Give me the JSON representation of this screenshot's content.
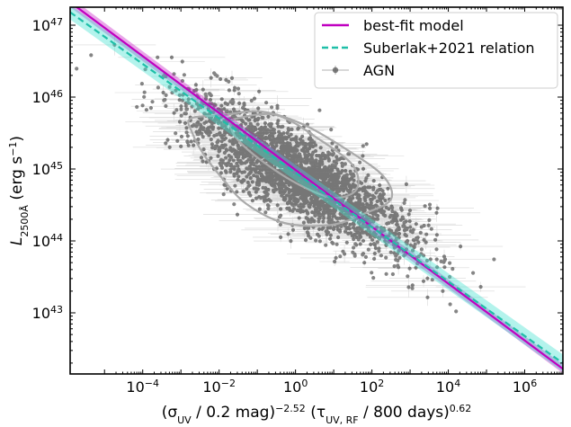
{
  "chart_data": {
    "type": "scatter",
    "title": "",
    "xlabel": {
      "text": "(σUV / 0.2 mag)−2.52 (τUV,RF / 800 days)0.62",
      "pre": "(σ",
      "sub1": "UV",
      "mid": " / 0.2 mag)",
      "sup1": "−2.52",
      "mid2": " (τ",
      "sub2": "UV, RF",
      "mid3": " / 800 days)",
      "sup2": "0.62"
    },
    "ylabel": {
      "text": "L2500Å (erg s−1)",
      "main": "L",
      "sub": "2500Å",
      "unit": " (erg s",
      "sup": "−1",
      "close": ")"
    },
    "xscale": "log",
    "yscale": "log",
    "xlim_log10": [
      -5.9,
      7.0
    ],
    "ylim_log10": [
      42.15,
      47.25
    ],
    "x_ticks": [
      {
        "exp": -4,
        "base": "10",
        "sup": "−4"
      },
      {
        "exp": -2,
        "base": "10",
        "sup": "−2"
      },
      {
        "exp": 0,
        "base": "10",
        "sup": "0"
      },
      {
        "exp": 2,
        "base": "10",
        "sup": "2"
      },
      {
        "exp": 4,
        "base": "10",
        "sup": "4"
      },
      {
        "exp": 6,
        "base": "10",
        "sup": "6"
      }
    ],
    "y_ticks": [
      {
        "exp": 43,
        "base": "10",
        "sup": "43"
      },
      {
        "exp": 44,
        "base": "10",
        "sup": "44"
      },
      {
        "exp": 45,
        "base": "10",
        "sup": "45"
      },
      {
        "exp": 46,
        "base": "10",
        "sup": "46"
      },
      {
        "exp": 47,
        "base": "10",
        "sup": "47"
      }
    ],
    "series": [
      {
        "name": "best-fit model",
        "kind": "line",
        "color": "#c000c0",
        "band_color": "#c000c0",
        "x_log10": [
          -5.9,
          7.0
        ],
        "y_log10": [
          47.32,
          42.22
        ],
        "band_halfwidth_dex": [
          0.07,
          0.06
        ]
      },
      {
        "name": "Suberlak+2021 relation",
        "kind": "dashed-line",
        "color": "#1fbfa8",
        "band_color": "#40e0d0",
        "x_log10": [
          -5.9,
          7.0
        ],
        "y_log10": [
          47.18,
          42.3
        ],
        "band_halfwidth_dex": [
          0.1,
          0.12
        ]
      },
      {
        "name": "AGN",
        "kind": "scatter-with-errorbars",
        "color": "#3a3a3a",
        "center_log10": [
          0.1,
          44.9
        ],
        "n_points_approx": 14000
      }
    ],
    "contours": [
      {
        "level": "inner",
        "color": "#aaaaaa",
        "x_log10": [
          -1.55,
          -0.5,
          0.6,
          1.5,
          1.6,
          1.0,
          0.1,
          -0.9,
          -1.5,
          -1.7
        ],
        "y_log10": [
          45.7,
          45.75,
          45.42,
          45.05,
          44.72,
          44.6,
          44.78,
          45.12,
          45.4,
          45.6
        ]
      },
      {
        "level": "outer",
        "color": "#aaaaaa",
        "x_log10": [
          -2.75,
          -1.9,
          -0.9,
          0.2,
          1.4,
          2.3,
          2.5,
          1.8,
          0.9,
          -0.3,
          -1.3,
          -1.9,
          -2.4,
          -2.7
        ],
        "y_log10": [
          45.7,
          45.75,
          45.8,
          45.62,
          45.25,
          44.9,
          44.58,
          44.38,
          44.22,
          44.25,
          44.52,
          44.86,
          45.2,
          45.5
        ]
      }
    ],
    "legend": {
      "position": "top-right",
      "entries": [
        {
          "label": "best-fit model",
          "style": "solid",
          "color": "#c000c0"
        },
        {
          "label": "Suberlak+2021 relation",
          "style": "dashed",
          "color": "#1fbfa8"
        },
        {
          "label": "AGN",
          "style": "marker-errorbar",
          "color": "#555555"
        }
      ]
    }
  }
}
